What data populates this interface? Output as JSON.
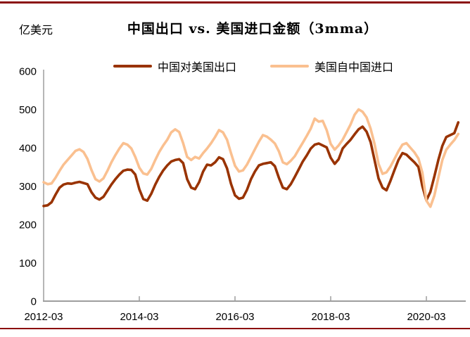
{
  "page": {
    "top_border_color": "#8b0e0e",
    "bottom_border_color": "#8b0e0e",
    "background": "#ffffff",
    "axis_color": "#9e9e9e"
  },
  "header": {
    "unit_label": "亿美元",
    "title": "中国出口 vs. 美国进口金额（3mma）"
  },
  "legend": [
    {
      "label": "中国对美国出口",
      "color": "#993300"
    },
    {
      "label": "美国自中国进口",
      "color": "#fac090"
    }
  ],
  "chart_data": {
    "type": "line",
    "title": "中国出口 vs. 美国进口金额（3mma）",
    "ylabel": "亿美元",
    "xlabel": "",
    "ylim": [
      0,
      600
    ],
    "y_ticks": [
      0,
      100,
      200,
      300,
      400,
      500,
      600
    ],
    "x_tick_labels": [
      "2012-03",
      "2014-03",
      "2016-03",
      "2018-03",
      "2020-03"
    ],
    "grid": false,
    "legend_position": "top",
    "x_frequency": "monthly",
    "months": [
      "2012-03",
      "2012-04",
      "2012-05",
      "2012-06",
      "2012-07",
      "2012-08",
      "2012-09",
      "2012-10",
      "2012-11",
      "2012-12",
      "2013-01",
      "2013-02",
      "2013-03",
      "2013-04",
      "2013-05",
      "2013-06",
      "2013-07",
      "2013-08",
      "2013-09",
      "2013-10",
      "2013-11",
      "2013-12",
      "2014-01",
      "2014-02",
      "2014-03",
      "2014-04",
      "2014-05",
      "2014-06",
      "2014-07",
      "2014-08",
      "2014-09",
      "2014-10",
      "2014-11",
      "2014-12",
      "2015-01",
      "2015-02",
      "2015-03",
      "2015-04",
      "2015-05",
      "2015-06",
      "2015-07",
      "2015-08",
      "2015-09",
      "2015-10",
      "2015-11",
      "2015-12",
      "2016-01",
      "2016-02",
      "2016-03",
      "2016-04",
      "2016-05",
      "2016-06",
      "2016-07",
      "2016-08",
      "2016-09",
      "2016-10",
      "2016-11",
      "2016-12",
      "2017-01",
      "2017-02",
      "2017-03",
      "2017-04",
      "2017-05",
      "2017-06",
      "2017-07",
      "2017-08",
      "2017-09",
      "2017-10",
      "2017-11",
      "2017-12",
      "2018-01",
      "2018-02",
      "2018-03",
      "2018-04",
      "2018-05",
      "2018-06",
      "2018-07",
      "2018-08",
      "2018-09",
      "2018-10",
      "2018-11",
      "2018-12",
      "2019-01",
      "2019-02",
      "2019-03",
      "2019-04",
      "2019-05",
      "2019-06",
      "2019-07",
      "2019-08",
      "2019-09",
      "2019-10",
      "2019-11",
      "2019-12",
      "2020-01",
      "2020-02",
      "2020-03",
      "2020-04",
      "2020-05",
      "2020-06",
      "2020-07",
      "2020-08",
      "2020-09",
      "2020-10",
      "2020-11"
    ],
    "series": [
      {
        "id": "china-exports-to-us",
        "name": "中国对美国出口",
        "color": "#993300",
        "values": [
          248,
          250,
          258,
          278,
          296,
          304,
          307,
          306,
          309,
          311,
          308,
          305,
          284,
          270,
          265,
          272,
          288,
          304,
          318,
          330,
          340,
          343,
          342,
          330,
          292,
          266,
          262,
          280,
          304,
          324,
          341,
          354,
          364,
          368,
          370,
          360,
          318,
          296,
          292,
          310,
          338,
          356,
          354,
          362,
          375,
          370,
          346,
          306,
          276,
          267,
          270,
          290,
          318,
          338,
          354,
          358,
          360,
          362,
          352,
          322,
          296,
          292,
          305,
          324,
          344,
          364,
          380,
          398,
          408,
          411,
          406,
          401,
          374,
          358,
          370,
          398,
          410,
          421,
          435,
          448,
          455,
          442,
          415,
          368,
          320,
          296,
          289,
          314,
          342,
          368,
          386,
          382,
          372,
          362,
          350,
          300,
          263,
          285,
          325,
          368,
          405,
          428,
          433,
          438,
          466
        ]
      },
      {
        "id": "us-imports-from-china",
        "name": "美国自中国进口",
        "color": "#fac090",
        "values": [
          310,
          305,
          307,
          322,
          340,
          356,
          368,
          380,
          392,
          396,
          389,
          371,
          342,
          318,
          312,
          320,
          340,
          362,
          381,
          398,
          412,
          408,
          398,
          376,
          348,
          333,
          330,
          345,
          368,
          389,
          406,
          421,
          440,
          448,
          441,
          412,
          376,
          368,
          376,
          372,
          386,
          398,
          412,
          428,
          446,
          440,
          421,
          386,
          353,
          338,
          341,
          356,
          376,
          396,
          416,
          433,
          429,
          421,
          411,
          391,
          362,
          357,
          366,
          378,
          396,
          413,
          431,
          450,
          476,
          468,
          470,
          446,
          410,
          395,
          406,
          421,
          441,
          461,
          486,
          500,
          494,
          479,
          450,
          410,
          358,
          332,
          336,
          351,
          371,
          391,
          408,
          412,
          400,
          388,
          372,
          335,
          262,
          246,
          275,
          322,
          368,
          395,
          408,
          420,
          436
        ]
      }
    ]
  }
}
